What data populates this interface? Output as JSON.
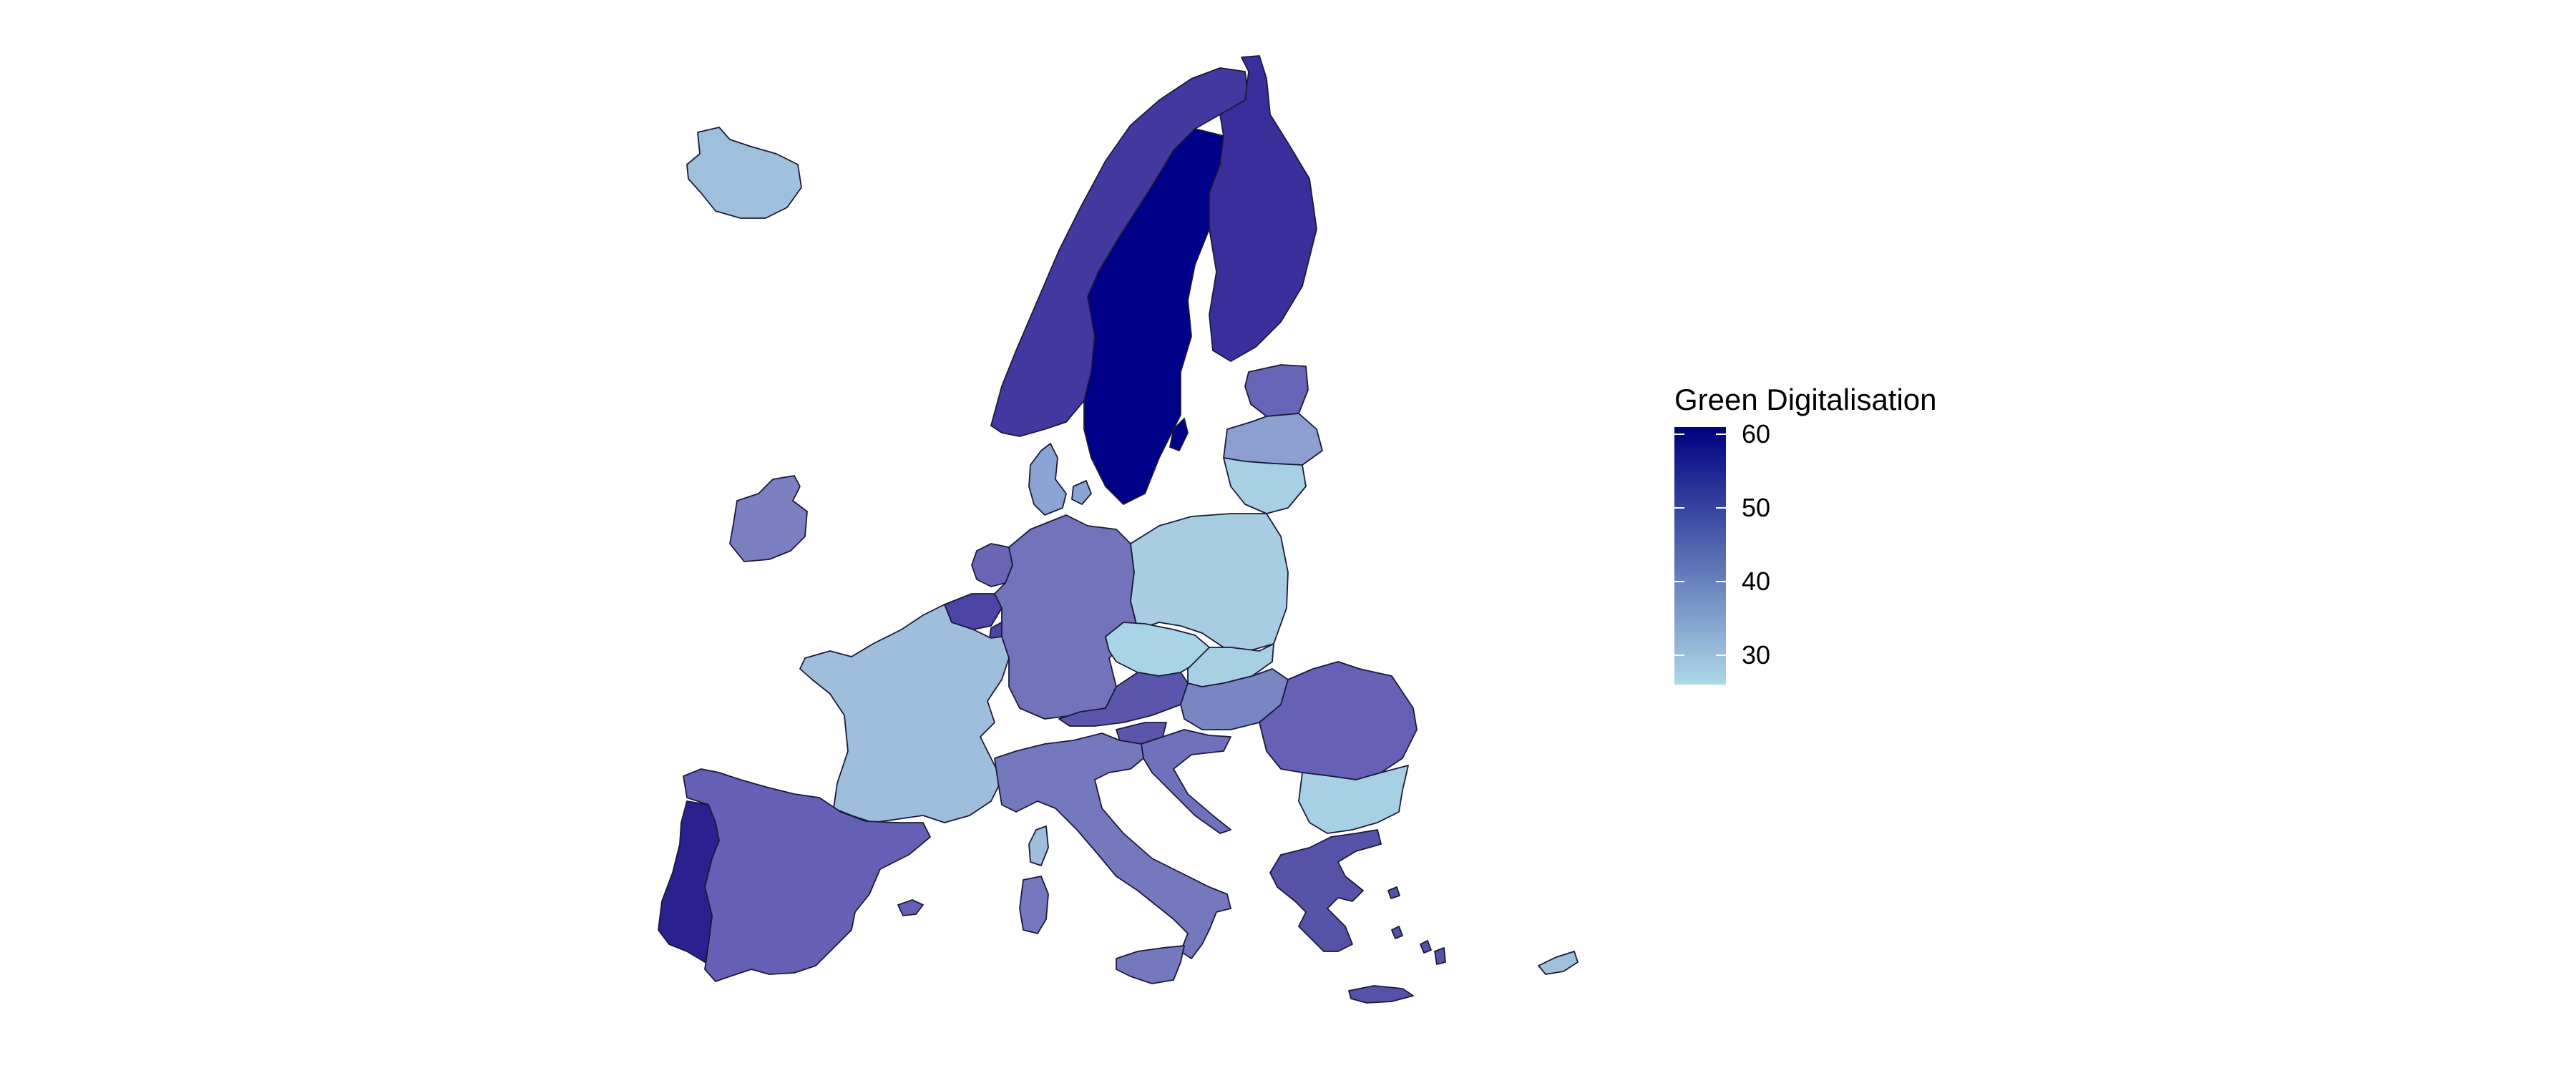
{
  "legend": {
    "title": "Green Digitalisation",
    "min": 26,
    "max": 61,
    "ticks": [
      {
        "value": 60,
        "label": "60"
      },
      {
        "value": 50,
        "label": "50"
      },
      {
        "value": 40,
        "label": "40"
      },
      {
        "value": 30,
        "label": "30"
      }
    ],
    "gradient": [
      "#add8e6",
      "#000080"
    ]
  },
  "colors": {
    "scale_low": "#add8e6",
    "scale_high": "#000080",
    "border": "#1a1a3a",
    "background": "#ffffff"
  }
}
